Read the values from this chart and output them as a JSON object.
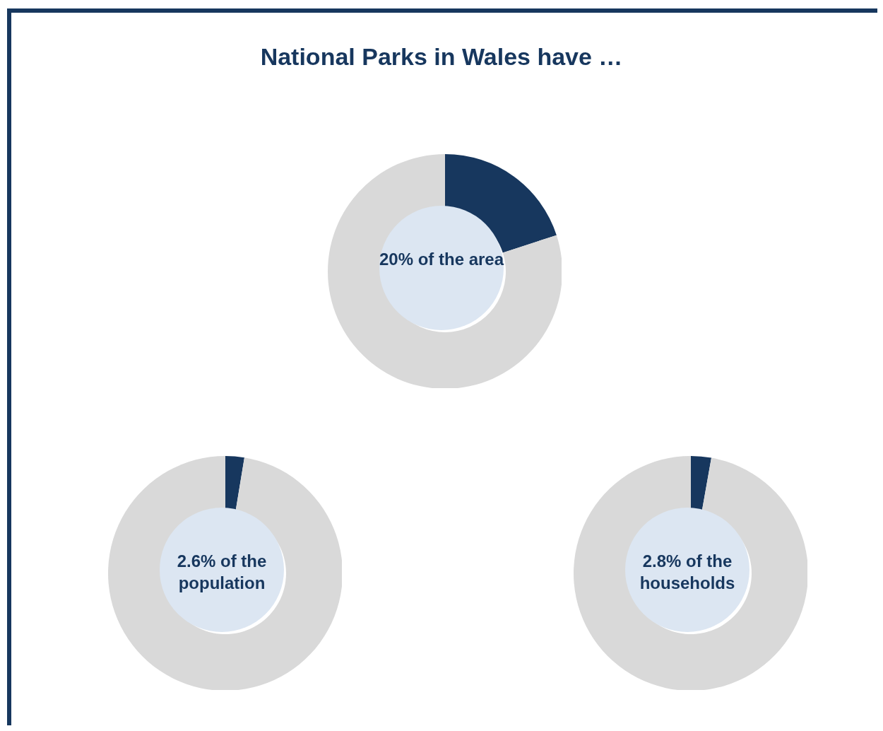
{
  "chart_data": [
    {
      "type": "donut",
      "title": "National Parks in Wales have …",
      "categories": [
        null,
        null
      ],
      "values": [
        20,
        80
      ],
      "colors": [
        "#17375e",
        "#d9d9d9"
      ],
      "annotations": [
        "20% of the area"
      ]
    },
    {
      "type": "donut",
      "categories": [
        null,
        null
      ],
      "values": [
        2.6,
        97.4
      ],
      "colors": [
        "#17375e",
        "#d9d9d9"
      ],
      "annotations": [
        "2.6% of the population"
      ]
    },
    {
      "type": "donut",
      "categories": [
        null,
        null
      ],
      "values": [
        2.8,
        97.2
      ],
      "colors": [
        "#17375e",
        "#d9d9d9"
      ],
      "annotations": [
        "2.8% of the households"
      ]
    }
  ]
}
